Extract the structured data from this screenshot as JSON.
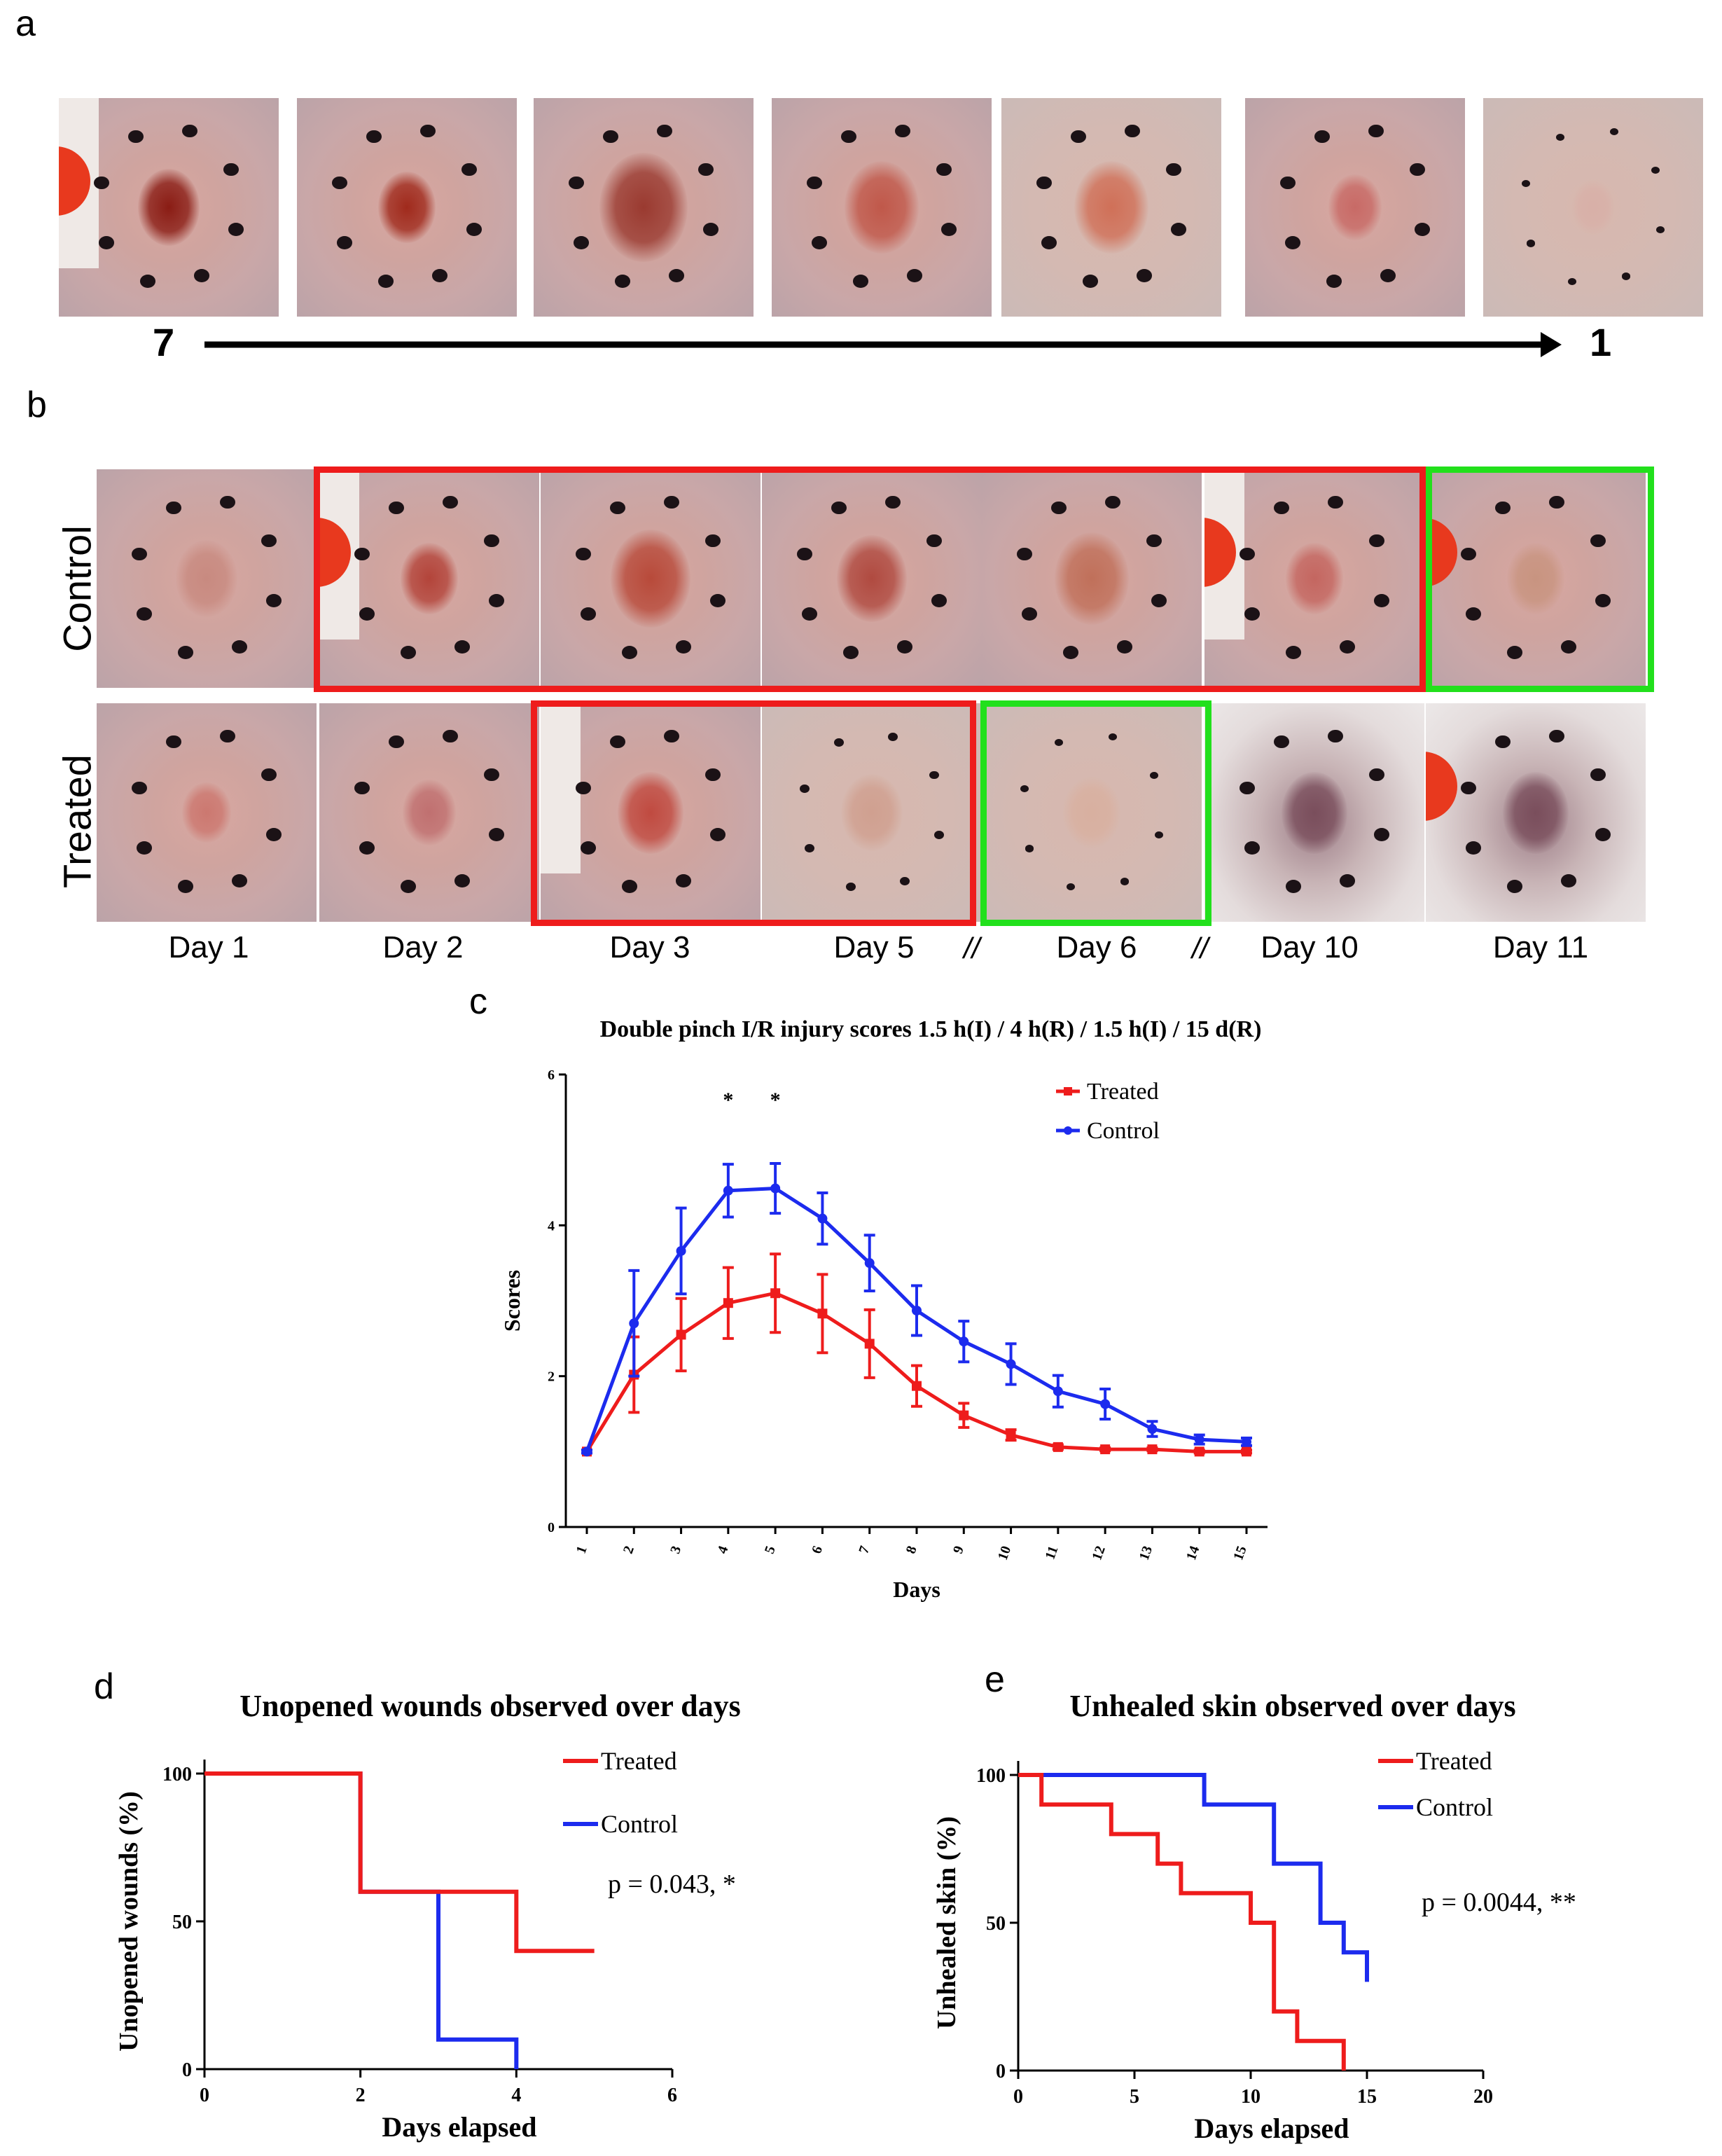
{
  "panels": {
    "a": "a",
    "b": "b",
    "c": "c",
    "d": "d",
    "e": "e"
  },
  "panel_a": {
    "scale_start": "7",
    "scale_end": "1"
  },
  "panel_b": {
    "rows": [
      "Control",
      "Treated"
    ],
    "days": [
      "Day 1",
      "Day 2",
      "Day 3",
      "Day 5",
      "Day 6",
      "Day 10",
      "Day 11"
    ],
    "break_mark": "//",
    "frame_colors": {
      "red": "#ee1c1c",
      "green": "#22e01c"
    }
  },
  "chart_data": [
    {
      "type": "line",
      "title": "Double pinch I/R injury scores 1.5 h(I) / 4 h(R) / 1.5 h(I) / 15 d(R)",
      "xlabel": "Days",
      "ylabel": "Scores",
      "x": [
        1,
        2,
        3,
        4,
        5,
        6,
        7,
        8,
        9,
        10,
        11,
        12,
        13,
        14,
        15
      ],
      "ylim": [
        0,
        6
      ],
      "yticks": [
        "0",
        "2",
        "4",
        "6"
      ],
      "xticks": [
        "1",
        "2",
        "3",
        "4",
        "5",
        "6",
        "7",
        "8",
        "9",
        "10",
        "11",
        "12",
        "13",
        "14",
        "15"
      ],
      "significance": [
        {
          "x": 4,
          "label": "*"
        },
        {
          "x": 5,
          "label": "*"
        }
      ],
      "legend_position": "top-right",
      "series": [
        {
          "name": "Treated",
          "color": "#ee1c1c",
          "values": [
            1.0,
            2.02,
            2.55,
            2.97,
            3.1,
            2.83,
            2.43,
            1.87,
            1.48,
            1.22,
            1.06,
            1.03,
            1.03,
            1.0,
            1.0
          ],
          "errors": [
            0.02,
            0.5,
            0.48,
            0.47,
            0.52,
            0.52,
            0.45,
            0.27,
            0.16,
            0.07,
            0.03,
            0.02,
            0.02,
            0.02,
            0.02
          ]
        },
        {
          "name": "Control",
          "color": "#1c2bee",
          "values": [
            1.0,
            2.7,
            3.66,
            4.46,
            4.49,
            4.09,
            3.5,
            2.87,
            2.46,
            2.16,
            1.8,
            1.63,
            1.3,
            1.16,
            1.13
          ],
          "errors": [
            0.02,
            0.7,
            0.57,
            0.35,
            0.33,
            0.34,
            0.37,
            0.33,
            0.27,
            0.27,
            0.21,
            0.2,
            0.1,
            0.06,
            0.05
          ]
        }
      ]
    },
    {
      "type": "line",
      "title": "Unopened wounds observed over days",
      "xlabel": "Days elapsed",
      "ylabel": "Unopened wounds (%)",
      "xlim": [
        0,
        6
      ],
      "ylim": [
        0,
        100
      ],
      "xticks": [
        "0",
        "2",
        "4",
        "6"
      ],
      "yticks": [
        "0",
        "50",
        "100"
      ],
      "annotation": "p = 0.043, *",
      "legend_position": "top-right",
      "series": [
        {
          "name": "Treated",
          "color": "#ee1c1c",
          "steps": [
            [
              0,
              100
            ],
            [
              2,
              100
            ],
            [
              2,
              60
            ],
            [
              4,
              60
            ],
            [
              4,
              40
            ],
            [
              5,
              40
            ]
          ]
        },
        {
          "name": "Control",
          "color": "#1c2bee",
          "steps": [
            [
              0,
              100
            ],
            [
              2,
              100
            ],
            [
              2,
              60
            ],
            [
              3,
              60
            ],
            [
              3,
              10
            ],
            [
              4,
              10
            ],
            [
              4,
              0
            ]
          ]
        }
      ]
    },
    {
      "type": "line",
      "title": "Unhealed skin observed over days",
      "xlabel": "Days elapsed",
      "ylabel": "Unhealed skin (%)",
      "xlim": [
        0,
        20
      ],
      "ylim": [
        0,
        100
      ],
      "xticks": [
        "0",
        "5",
        "10",
        "15",
        "20"
      ],
      "yticks": [
        "0",
        "50",
        "100"
      ],
      "annotation": "p = 0.0044, **",
      "legend_position": "top-right",
      "series": [
        {
          "name": "Treated",
          "color": "#ee1c1c",
          "steps": [
            [
              0,
              100
            ],
            [
              1,
              100
            ],
            [
              1,
              90
            ],
            [
              4,
              90
            ],
            [
              4,
              80
            ],
            [
              6,
              80
            ],
            [
              6,
              70
            ],
            [
              7,
              70
            ],
            [
              7,
              60
            ],
            [
              10,
              60
            ],
            [
              10,
              50
            ],
            [
              11,
              50
            ],
            [
              11,
              20
            ],
            [
              12,
              20
            ],
            [
              12,
              10
            ],
            [
              14,
              10
            ],
            [
              14,
              0
            ]
          ]
        },
        {
          "name": "Control",
          "color": "#1c2bee",
          "steps": [
            [
              0,
              100
            ],
            [
              8,
              100
            ],
            [
              8,
              90
            ],
            [
              11,
              90
            ],
            [
              11,
              70
            ],
            [
              13,
              70
            ],
            [
              13,
              50
            ],
            [
              14,
              50
            ],
            [
              14,
              40
            ],
            [
              15,
              40
            ],
            [
              15,
              30
            ]
          ]
        }
      ]
    }
  ]
}
